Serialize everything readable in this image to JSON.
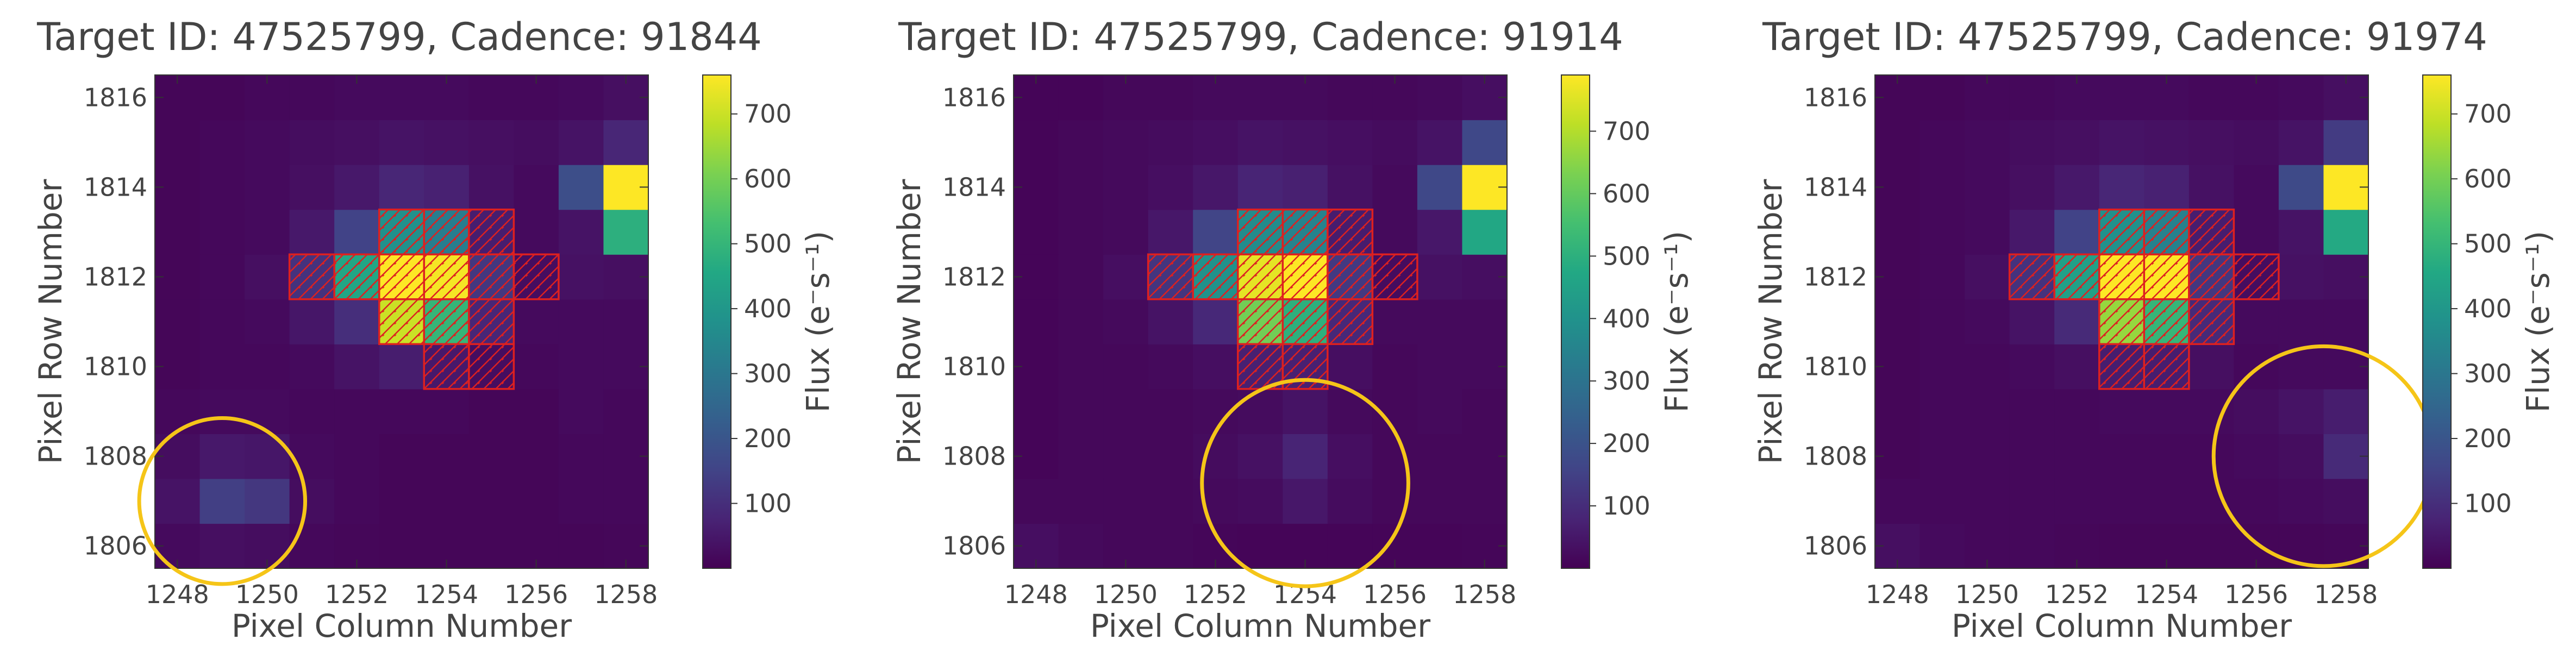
{
  "figure": {
    "background": "#ffffff",
    "text_color": "#444444"
  },
  "chart_data": [
    {
      "type": "heatmap",
      "title": "Target ID: 47525799, Cadence: 91844",
      "xlabel": "Pixel Column Number",
      "ylabel": "Pixel Row Number",
      "colorbar_label": "Flux ($e^{-}s^{-1}$)",
      "colorbar_label_text": "Flux (e⁻s⁻¹)",
      "colormap": "viridis",
      "vmin": 0,
      "vmax": 760,
      "colorbar_ticks": [
        100,
        200,
        300,
        400,
        500,
        600,
        700
      ],
      "x_range": [
        1247.5,
        1258.5
      ],
      "y_range": [
        1805.5,
        1816.5
      ],
      "x_ticks": [
        1248,
        1250,
        1252,
        1254,
        1256,
        1258
      ],
      "y_ticks": [
        1806,
        1808,
        1810,
        1812,
        1814,
        1816
      ],
      "col_start": 1248,
      "row_start": 1806,
      "flux": [
        [
          20,
          30,
          25,
          15,
          12,
          10,
          10,
          10,
          10,
          10,
          12
        ],
        [
          40,
          140,
          120,
          25,
          15,
          10,
          10,
          10,
          10,
          15,
          15
        ],
        [
          25,
          50,
          45,
          20,
          15,
          10,
          10,
          10,
          10,
          15,
          15
        ],
        [
          15,
          20,
          20,
          15,
          15,
          15,
          15,
          10,
          10,
          20,
          15
        ],
        [
          10,
          15,
          15,
          20,
          40,
          60,
          50,
          25,
          15,
          20,
          20
        ],
        [
          10,
          15,
          20,
          45,
          100,
          700,
          500,
          80,
          20,
          20,
          20
        ],
        [
          10,
          15,
          30,
          110,
          450,
          760,
          750,
          120,
          25,
          35,
          30
        ],
        [
          10,
          15,
          20,
          50,
          150,
          380,
          320,
          60,
          20,
          40,
          480
        ],
        [
          10,
          15,
          20,
          30,
          50,
          80,
          70,
          35,
          20,
          180,
          760
        ],
        [
          10,
          15,
          20,
          25,
          30,
          40,
          35,
          30,
          25,
          40,
          80
        ],
        [
          10,
          10,
          15,
          15,
          20,
          20,
          20,
          15,
          15,
          20,
          30
        ]
      ],
      "aperture_pixels": [
        [
          1254,
          1810
        ],
        [
          1255,
          1810
        ],
        [
          1253,
          1811
        ],
        [
          1254,
          1811
        ],
        [
          1255,
          1811
        ],
        [
          1251,
          1812
        ],
        [
          1252,
          1812
        ],
        [
          1253,
          1812
        ],
        [
          1254,
          1812
        ],
        [
          1255,
          1812
        ],
        [
          1256,
          1812
        ],
        [
          1253,
          1813
        ],
        [
          1254,
          1813
        ],
        [
          1255,
          1813
        ]
      ],
      "circle": {
        "x": 1249,
        "y": 1807,
        "r": 1.85,
        "color": "#f5c518"
      }
    },
    {
      "type": "heatmap",
      "title": "Target ID: 47525799, Cadence: 91914",
      "xlabel": "Pixel Column Number",
      "ylabel": "Pixel Row Number",
      "colorbar_label": "Flux ($e^{-}s^{-1}$)",
      "colorbar_label_text": "Flux (e⁻s⁻¹)",
      "colormap": "viridis",
      "vmin": 0,
      "vmax": 790,
      "colorbar_ticks": [
        100,
        200,
        300,
        400,
        500,
        600,
        700
      ],
      "x_range": [
        1247.5,
        1258.5
      ],
      "y_range": [
        1805.5,
        1816.5
      ],
      "x_ticks": [
        1248,
        1250,
        1252,
        1254,
        1256,
        1258
      ],
      "y_ticks": [
        1806,
        1808,
        1810,
        1812,
        1814,
        1816
      ],
      "col_start": 1248,
      "row_start": 1806,
      "flux": [
        [
          30,
          20,
          15,
          15,
          12,
          10,
          10,
          10,
          10,
          10,
          12
        ],
        [
          15,
          15,
          15,
          15,
          20,
          25,
          50,
          25,
          15,
          15,
          15
        ],
        [
          10,
          15,
          15,
          15,
          25,
          35,
          80,
          30,
          15,
          15,
          15
        ],
        [
          10,
          15,
          15,
          15,
          20,
          25,
          40,
          20,
          15,
          20,
          15
        ],
        [
          10,
          15,
          15,
          20,
          30,
          70,
          70,
          30,
          15,
          20,
          20
        ],
        [
          10,
          15,
          20,
          40,
          90,
          620,
          500,
          90,
          20,
          20,
          20
        ],
        [
          10,
          15,
          30,
          120,
          400,
          760,
          790,
          130,
          25,
          35,
          30
        ],
        [
          10,
          15,
          20,
          50,
          160,
          380,
          350,
          60,
          20,
          50,
          470
        ],
        [
          10,
          15,
          20,
          30,
          50,
          80,
          70,
          35,
          20,
          170,
          790
        ],
        [
          10,
          15,
          20,
          25,
          30,
          40,
          35,
          30,
          25,
          40,
          170
        ],
        [
          10,
          10,
          15,
          15,
          20,
          20,
          20,
          15,
          15,
          20,
          30
        ]
      ],
      "aperture_pixels": [
        [
          1253,
          1810
        ],
        [
          1254,
          1810
        ],
        [
          1253,
          1811
        ],
        [
          1254,
          1811
        ],
        [
          1255,
          1811
        ],
        [
          1251,
          1812
        ],
        [
          1252,
          1812
        ],
        [
          1253,
          1812
        ],
        [
          1254,
          1812
        ],
        [
          1255,
          1812
        ],
        [
          1256,
          1812
        ],
        [
          1253,
          1813
        ],
        [
          1254,
          1813
        ],
        [
          1255,
          1813
        ]
      ],
      "circle": {
        "x": 1254,
        "y": 1807.4,
        "r": 2.3,
        "color": "#f5c518"
      }
    },
    {
      "type": "heatmap",
      "title": "Target ID: 47525799, Cadence: 91974",
      "xlabel": "Pixel Column Number",
      "ylabel": "Pixel Row Number",
      "colorbar_label": "Flux ($e^{-}s^{-1}$)",
      "colorbar_label_text": "Flux (e⁻s⁻¹)",
      "colormap": "viridis",
      "vmin": 0,
      "vmax": 760,
      "colorbar_ticks": [
        100,
        200,
        300,
        400,
        500,
        600,
        700
      ],
      "x_range": [
        1247.5,
        1258.5
      ],
      "y_range": [
        1805.5,
        1816.5
      ],
      "x_ticks": [
        1248,
        1250,
        1252,
        1254,
        1256,
        1258
      ],
      "y_ticks": [
        1806,
        1808,
        1810,
        1812,
        1814,
        1816
      ],
      "col_start": 1248,
      "row_start": 1806,
      "flux": [
        [
          30,
          20,
          15,
          15,
          12,
          10,
          10,
          10,
          10,
          10,
          12
        ],
        [
          15,
          15,
          15,
          15,
          15,
          15,
          15,
          15,
          15,
          20,
          25
        ],
        [
          10,
          15,
          15,
          15,
          15,
          15,
          15,
          15,
          20,
          25,
          90
        ],
        [
          10,
          15,
          15,
          15,
          15,
          20,
          20,
          20,
          25,
          40,
          60
        ],
        [
          10,
          15,
          15,
          20,
          30,
          60,
          60,
          30,
          15,
          20,
          20
        ],
        [
          10,
          15,
          20,
          40,
          90,
          640,
          500,
          90,
          20,
          20,
          20
        ],
        [
          10,
          15,
          30,
          110,
          430,
          760,
          760,
          120,
          25,
          35,
          30
        ],
        [
          10,
          15,
          20,
          50,
          150,
          380,
          330,
          60,
          20,
          40,
          460
        ],
        [
          10,
          15,
          20,
          30,
          50,
          80,
          70,
          35,
          20,
          170,
          760
        ],
        [
          10,
          15,
          20,
          25,
          30,
          40,
          35,
          30,
          25,
          40,
          130
        ],
        [
          10,
          10,
          15,
          15,
          20,
          20,
          20,
          15,
          15,
          20,
          30
        ]
      ],
      "aperture_pixels": [
        [
          1253,
          1810
        ],
        [
          1254,
          1810
        ],
        [
          1253,
          1811
        ],
        [
          1254,
          1811
        ],
        [
          1255,
          1811
        ],
        [
          1251,
          1812
        ],
        [
          1252,
          1812
        ],
        [
          1253,
          1812
        ],
        [
          1254,
          1812
        ],
        [
          1255,
          1812
        ],
        [
          1256,
          1812
        ],
        [
          1253,
          1813
        ],
        [
          1254,
          1813
        ],
        [
          1255,
          1813
        ]
      ],
      "circle": {
        "x": 1257.5,
        "y": 1808,
        "r": 2.45,
        "color": "#f5c518"
      }
    }
  ]
}
